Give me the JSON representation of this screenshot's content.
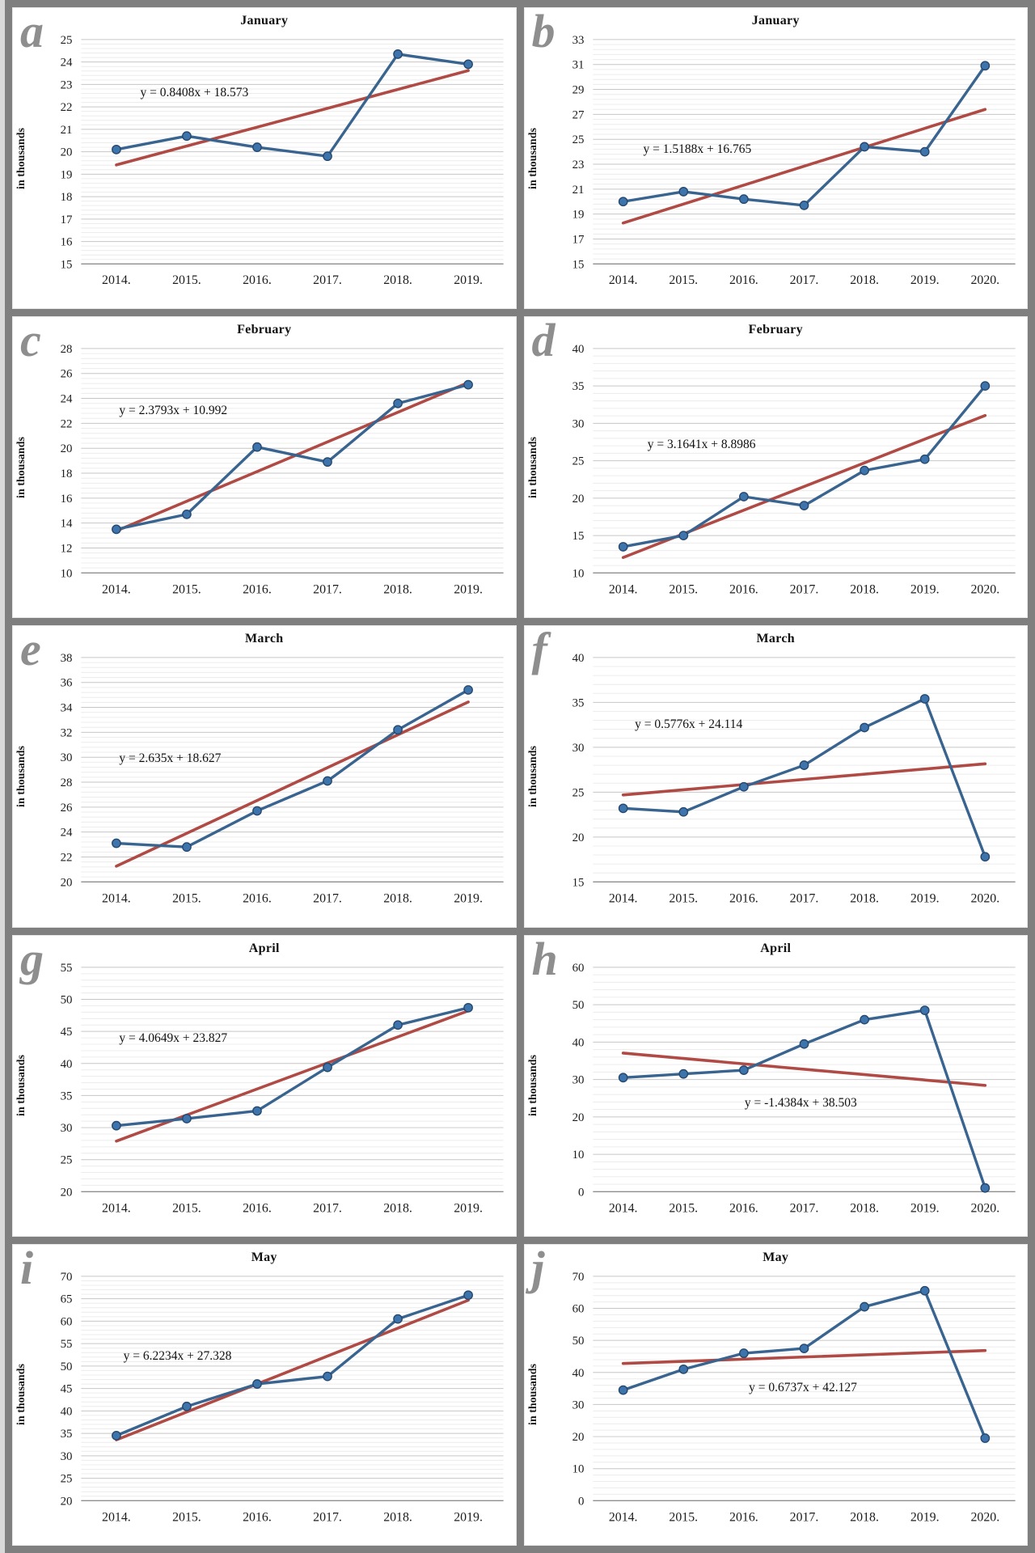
{
  "colors": {
    "series": "#38648f",
    "marker": "#3e74ac",
    "marker_edge": "#26486e",
    "trend": "#b04a45",
    "grid_major": "#c6c6c6",
    "grid_minor": "#ececec",
    "axis": "#8f8f8f",
    "letter": "#8e8e8e"
  },
  "chart_data": [
    {
      "letter": "a",
      "type": "line",
      "title": "January",
      "ylabel": "in thousands",
      "equation": "y = 0.8408x + 18.573",
      "categories": [
        "2014.",
        "2015.",
        "2016.",
        "2017.",
        "2018.",
        "2019."
      ],
      "values": [
        20.1,
        20.7,
        20.2,
        19.8,
        24.35,
        23.9
      ],
      "trend": {
        "slope": 0.8408,
        "intercept": 18.573
      },
      "ylim": [
        15,
        25
      ],
      "y_step": 1,
      "grid": true,
      "eq_pos": [
        0.14,
        0.24
      ]
    },
    {
      "letter": "b",
      "type": "line",
      "title": "January",
      "ylabel": "in thousands",
      "equation": "y = 1.5188x + 16.765",
      "categories": [
        "2014.",
        "2015.",
        "2016.",
        "2017.",
        "2018.",
        "2019.",
        "2020."
      ],
      "values": [
        20.0,
        20.8,
        20.2,
        19.7,
        24.4,
        24.0,
        30.9
      ],
      "trend": {
        "slope": 1.5188,
        "intercept": 16.765
      },
      "ylim": [
        15,
        33
      ],
      "y_step": 2,
      "grid": true,
      "eq_pos": [
        0.12,
        0.49
      ]
    },
    {
      "letter": "c",
      "type": "line",
      "title": "February",
      "ylabel": "in thousands",
      "equation": "y = 2.3793x + 10.992",
      "categories": [
        "2014.",
        "2015.",
        "2016.",
        "2017.",
        "2018.",
        "2019."
      ],
      "values": [
        13.5,
        14.7,
        20.1,
        18.9,
        23.6,
        25.1
      ],
      "trend": {
        "slope": 2.3793,
        "intercept": 10.992
      },
      "ylim": [
        10,
        28
      ],
      "y_step": 2,
      "grid": true,
      "eq_pos": [
        0.09,
        0.28
      ]
    },
    {
      "letter": "d",
      "type": "line",
      "title": "February",
      "ylabel": "in thousands",
      "equation": "y = 3.1641x + 8.8986",
      "categories": [
        "2014.",
        "2015.",
        "2016.",
        "2017.",
        "2018.",
        "2019.",
        "2020."
      ],
      "values": [
        13.5,
        15.0,
        20.2,
        19.0,
        23.7,
        25.2,
        35.0
      ],
      "trend": {
        "slope": 3.1641,
        "intercept": 8.8986
      },
      "ylim": [
        10,
        40
      ],
      "y_step": 5,
      "grid": true,
      "eq_pos": [
        0.13,
        0.43
      ]
    },
    {
      "letter": "e",
      "type": "line",
      "title": "March",
      "ylabel": "in thousands",
      "equation": "y = 2.635x + 18.627",
      "categories": [
        "2014.",
        "2015.",
        "2016.",
        "2017.",
        "2018.",
        "2019."
      ],
      "values": [
        23.1,
        22.8,
        25.7,
        28.1,
        32.2,
        35.4
      ],
      "trend": {
        "slope": 2.635,
        "intercept": 18.627
      },
      "ylim": [
        20,
        38
      ],
      "y_step": 2,
      "grid": true,
      "eq_pos": [
        0.09,
        0.45
      ]
    },
    {
      "letter": "f",
      "type": "line",
      "title": "March",
      "ylabel": "in thousands",
      "equation": "y = 0.5776x + 24.114",
      "categories": [
        "2014.",
        "2015.",
        "2016.",
        "2017.",
        "2018.",
        "2019.",
        "2020."
      ],
      "values": [
        23.2,
        22.8,
        25.6,
        28.0,
        32.2,
        35.4,
        17.8
      ],
      "trend": {
        "slope": 0.5776,
        "intercept": 24.114
      },
      "ylim": [
        15,
        40
      ],
      "y_step": 5,
      "grid": true,
      "eq_pos": [
        0.1,
        0.3
      ]
    },
    {
      "letter": "g",
      "type": "line",
      "title": "April",
      "ylabel": "in thousands",
      "equation": "y = 4.0649x + 23.827",
      "categories": [
        "2014.",
        "2015.",
        "2016.",
        "2017.",
        "2018.",
        "2019."
      ],
      "values": [
        30.3,
        31.4,
        32.6,
        39.4,
        46.0,
        48.7
      ],
      "trend": {
        "slope": 4.0649,
        "intercept": 23.827
      },
      "ylim": [
        20,
        55
      ],
      "y_step": 5,
      "grid": true,
      "eq_pos": [
        0.09,
        0.32
      ]
    },
    {
      "letter": "h",
      "type": "line",
      "title": "April",
      "ylabel": "in thousands",
      "equation": "y = -1.4384x + 38.503",
      "categories": [
        "2014.",
        "2015.",
        "2016.",
        "2017.",
        "2018.",
        "2019.",
        "2020."
      ],
      "values": [
        30.5,
        31.5,
        32.5,
        39.5,
        46.0,
        48.5,
        1.0
      ],
      "trend": {
        "slope": -1.4384,
        "intercept": 38.503
      },
      "ylim": [
        0,
        60
      ],
      "y_step": 10,
      "grid": true,
      "eq_pos": [
        0.36,
        0.61
      ]
    },
    {
      "letter": "i",
      "type": "line",
      "title": "May",
      "ylabel": "in thousands",
      "equation": "y = 6.2234x + 27.328",
      "categories": [
        "2014.",
        "2015.",
        "2016.",
        "2017.",
        "2018.",
        "2019."
      ],
      "values": [
        34.5,
        41.0,
        46.0,
        47.7,
        60.5,
        65.8
      ],
      "trend": {
        "slope": 6.2234,
        "intercept": 27.328
      },
      "ylim": [
        20,
        70
      ],
      "y_step": 5,
      "grid": true,
      "eq_pos": [
        0.1,
        0.36
      ]
    },
    {
      "letter": "j",
      "type": "line",
      "title": "May",
      "ylabel": "in thousands",
      "equation": "y = 0.6737x + 42.127",
      "categories": [
        "2014.",
        "2015.",
        "2016.",
        "2017.",
        "2018.",
        "2019.",
        "2020."
      ],
      "values": [
        34.5,
        41.0,
        46.0,
        47.5,
        60.5,
        65.5,
        19.5
      ],
      "trend": {
        "slope": 0.6737,
        "intercept": 42.127
      },
      "ylim": [
        0,
        70
      ],
      "y_step": 10,
      "grid": true,
      "eq_pos": [
        0.37,
        0.5
      ]
    }
  ]
}
